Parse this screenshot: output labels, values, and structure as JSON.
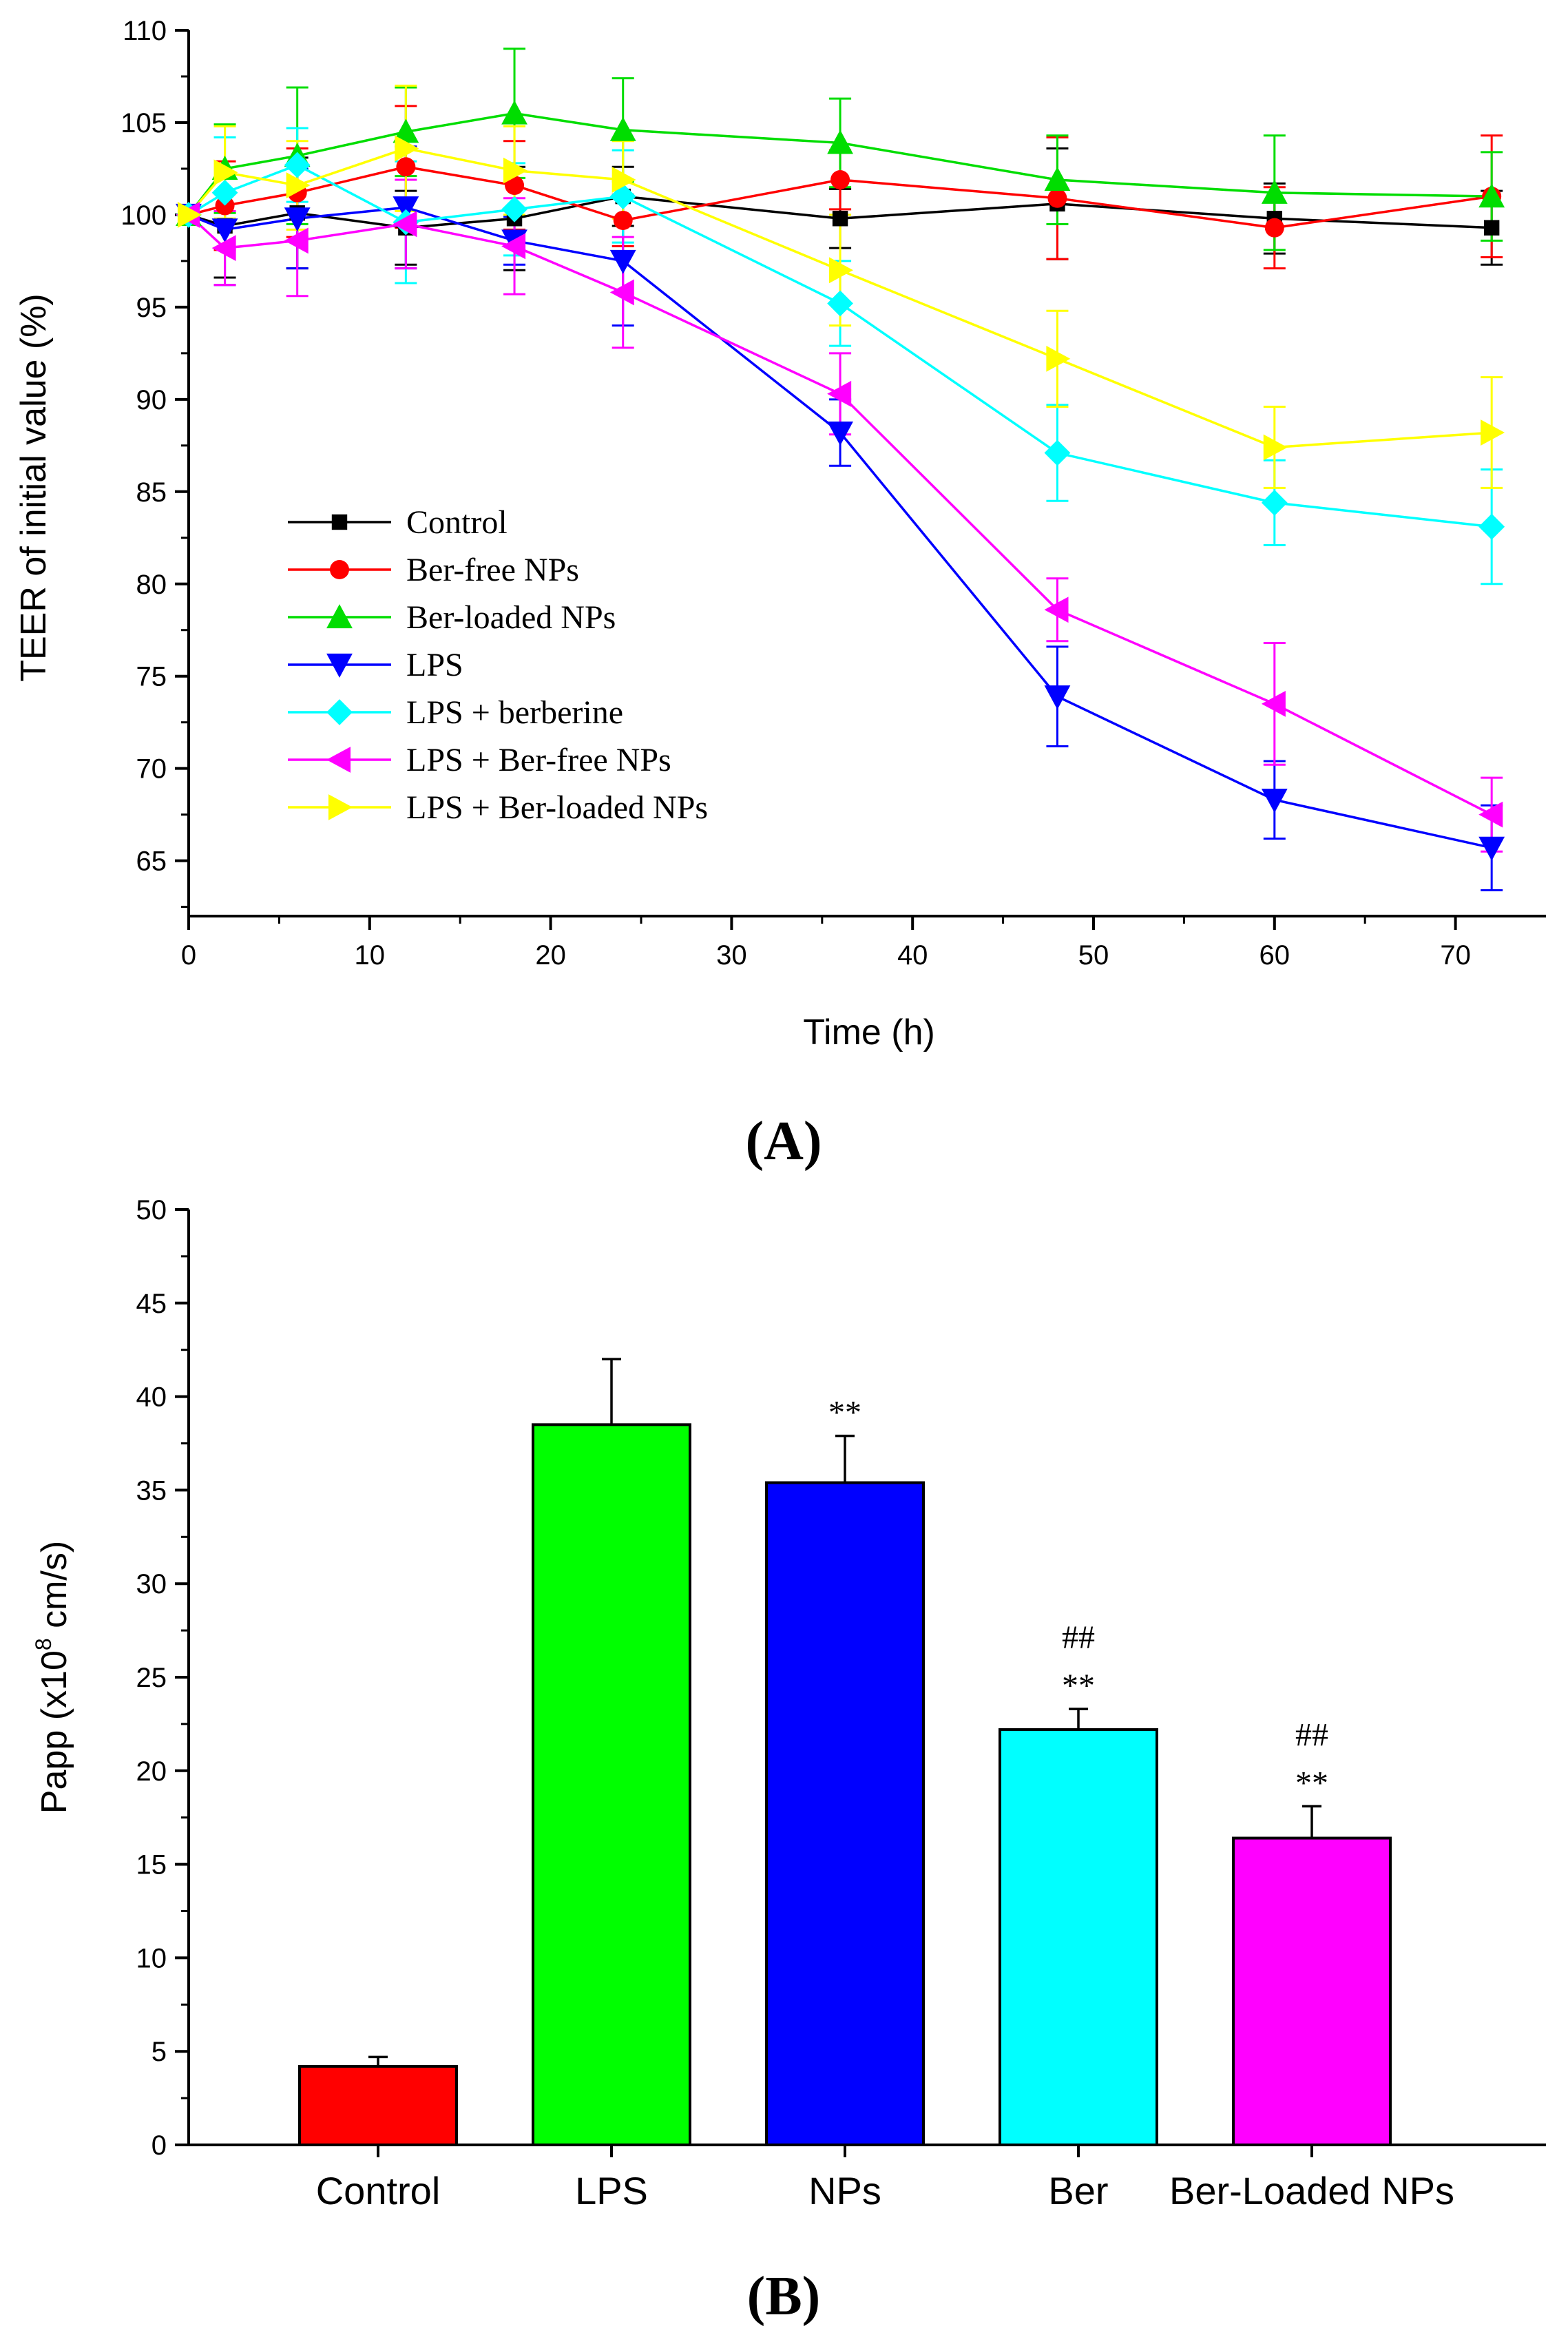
{
  "chart_data": [
    {
      "type": "line",
      "panel_label": "(A)",
      "title": "",
      "xlabel": "Time (h)",
      "ylabel": "TEER of initial value (%)",
      "xlim": [
        0,
        75
      ],
      "ylim": [
        62,
        110
      ],
      "xticks": [
        0,
        10,
        20,
        30,
        40,
        50,
        60,
        70
      ],
      "yticks": [
        65,
        70,
        75,
        80,
        85,
        90,
        95,
        100,
        105,
        110
      ],
      "legend_position": "lower-left",
      "x": [
        0,
        2,
        6,
        12,
        18,
        24,
        36,
        48,
        60,
        72
      ],
      "series": [
        {
          "name": "Control",
          "marker": "square",
          "color": "#000000",
          "values": [
            100,
            99.4,
            100.1,
            99.3,
            99.8,
            101,
            99.8,
            100.6,
            99.8,
            99.3
          ],
          "errors": [
            0,
            2.8,
            3.0,
            2.0,
            2.8,
            1.6,
            1.6,
            3.0,
            1.9,
            2.0
          ]
        },
        {
          "name": "Ber-free NPs",
          "marker": "circle",
          "color": "#ff0000",
          "values": [
            100,
            100.5,
            101.2,
            102.6,
            101.6,
            99.7,
            101.9,
            100.9,
            99.3,
            101
          ],
          "errors": [
            0,
            2.4,
            2.4,
            3.3,
            2.4,
            1.4,
            1.6,
            3.3,
            2.2,
            3.3
          ]
        },
        {
          "name": "Ber-loaded NPs",
          "marker": "triangle-up",
          "color": "#00dd00",
          "values": [
            100,
            102.5,
            103.2,
            104.5,
            105.5,
            104.6,
            103.9,
            101.9,
            101.2,
            101
          ],
          "errors": [
            0,
            2.4,
            3.7,
            2.4,
            3.5,
            2.8,
            2.4,
            2.4,
            3.1,
            2.4
          ]
        },
        {
          "name": "LPS",
          "marker": "triangle-down",
          "color": "#0000ff",
          "values": [
            100,
            99.2,
            99.8,
            100.4,
            98.6,
            97.5,
            88.2,
            73.9,
            68.3,
            65.7
          ],
          "errors": [
            0,
            3.0,
            2.7,
            3.3,
            1.3,
            3.5,
            1.8,
            2.7,
            2.1,
            2.3
          ]
        },
        {
          "name": "LPS + berberine",
          "marker": "diamond",
          "color": "#00ffff",
          "values": [
            100,
            101.2,
            102.7,
            99.6,
            100.3,
            101,
            95.2,
            87.1,
            84.4,
            83.1
          ],
          "errors": [
            0,
            3.0,
            2.0,
            3.3,
            2.5,
            2.5,
            2.3,
            2.6,
            2.3,
            3.1
          ]
        },
        {
          "name": "LPS + Ber-free NPs",
          "marker": "triangle-left",
          "color": "#ff00ff",
          "values": [
            100,
            98.2,
            98.6,
            99.5,
            98.3,
            95.8,
            90.3,
            78.6,
            73.5,
            67.5
          ],
          "errors": [
            0,
            2.0,
            3.0,
            2.4,
            2.6,
            3.0,
            2.2,
            1.7,
            3.3,
            2.0
          ]
        },
        {
          "name": "LPS + Ber-loaded NPs",
          "marker": "triangle-right",
          "color": "#ffff00",
          "values": [
            100,
            102.3,
            101.6,
            103.6,
            102.4,
            101.9,
            97,
            92.2,
            87.4,
            88.2
          ],
          "errors": [
            0,
            2.5,
            2.4,
            3.4,
            2.4,
            2.1,
            3.0,
            2.6,
            2.2,
            3.0
          ]
        }
      ]
    },
    {
      "type": "bar",
      "panel_label": "(B)",
      "title": "",
      "xlabel": "",
      "ylabel_prefix": "Papp (x10",
      "ylabel_exponent": "8",
      "ylabel_suffix": " cm/s)",
      "ylim": [
        0,
        50
      ],
      "yticks": [
        0,
        5,
        10,
        15,
        20,
        25,
        30,
        35,
        40,
        45,
        50
      ],
      "categories": [
        "Control",
        "LPS",
        "NPs",
        "Ber",
        "Ber-Loaded NPs"
      ],
      "values": [
        4.2,
        38.5,
        35.4,
        22.2,
        16.4
      ],
      "errors": [
        0.5,
        3.5,
        2.5,
        1.1,
        1.7
      ],
      "colors": [
        "#ff0000",
        "#00ff00",
        "#0000ff",
        "#00ffff",
        "#ff00ff"
      ],
      "annotations": [
        {
          "category": "NPs",
          "lines": [
            "**"
          ]
        },
        {
          "category": "Ber",
          "lines": [
            "##",
            "**"
          ]
        },
        {
          "category": "Ber-Loaded NPs",
          "lines": [
            "##",
            "**"
          ]
        }
      ]
    }
  ]
}
